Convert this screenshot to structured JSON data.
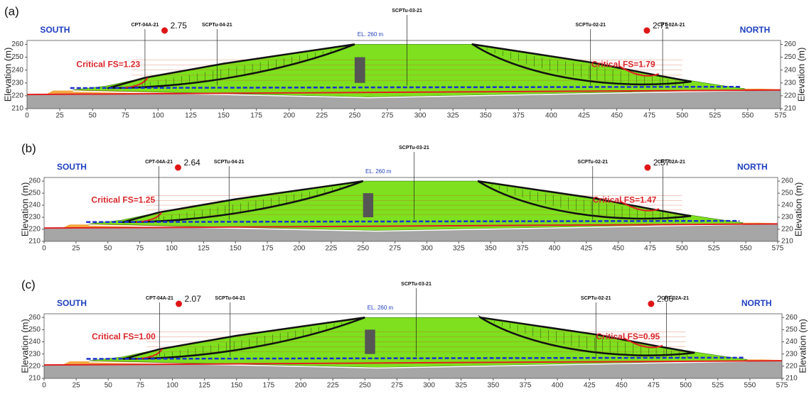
{
  "chart_data": [
    {
      "type": "cross-section",
      "panel_label": "(a)",
      "y_label": "Elevation (m)",
      "xlim": [
        0,
        575
      ],
      "xticks": [
        0,
        25,
        50,
        75,
        100,
        125,
        150,
        175,
        200,
        225,
        250,
        275,
        300,
        325,
        350,
        375,
        400,
        425,
        450,
        475,
        500,
        525,
        550,
        575
      ],
      "ylim": [
        210,
        263
      ],
      "yticks": [
        210,
        220,
        230,
        240,
        250,
        260
      ],
      "south": "SOUTH",
      "north": "NORTH",
      "crest": "EL. 260 m",
      "boreholes": [
        "CPT-04A-21",
        "SCPTu-04-21",
        "SCPTu-03-21",
        "SCPTu-02-21",
        "CPT-02A-21"
      ],
      "critical_fs": [
        "Critical FS=1.23",
        "Critical FS=1.79"
      ],
      "fs_points": [
        "2.75",
        "2.71"
      ]
    },
    {
      "type": "cross-section",
      "panel_label": "(b)",
      "y_label": "Elevation (m)",
      "xlim": [
        0,
        575
      ],
      "xticks": [
        0,
        25,
        50,
        75,
        100,
        125,
        150,
        175,
        200,
        225,
        250,
        275,
        300,
        325,
        350,
        375,
        400,
        425,
        450,
        475,
        500,
        525,
        550,
        575
      ],
      "ylim": [
        210,
        263
      ],
      "yticks": [
        210,
        220,
        230,
        240,
        250,
        260
      ],
      "south": "SOUTH",
      "north": "NORTH",
      "crest": "EL. 260 m",
      "boreholes": [
        "CPT-04A-21",
        "SCPTu-04-21",
        "SCPTu-03-21",
        "SCPTu-02-21",
        "CPT-02A-21"
      ],
      "critical_fs": [
        "Critical FS=1.25",
        "Critical FS=1.47"
      ],
      "fs_points": [
        "2.64",
        "2.57"
      ]
    },
    {
      "type": "cross-section",
      "panel_label": "(c)",
      "y_label": "Elevation (m)",
      "xlim": [
        0,
        575
      ],
      "xticks": [
        0,
        25,
        50,
        75,
        100,
        125,
        150,
        175,
        200,
        225,
        250,
        275,
        300,
        325,
        350,
        375,
        400,
        425,
        450,
        475,
        500,
        525,
        550,
        575
      ],
      "ylim": [
        210,
        263
      ],
      "yticks": [
        210,
        220,
        230,
        240,
        250,
        260
      ],
      "south": "SOUTH",
      "north": "NORTH",
      "crest": "EL. 260 m",
      "boreholes": [
        "CPT-04A-21",
        "SCPTu-04-21",
        "SCPTu-03-21",
        "SCPTu-02-21",
        "CPT-02A-21"
      ],
      "critical_fs": [
        "Critical FS=1.00",
        "Critical FS=0.95"
      ],
      "fs_points": [
        "2.07",
        "2.06"
      ]
    }
  ]
}
